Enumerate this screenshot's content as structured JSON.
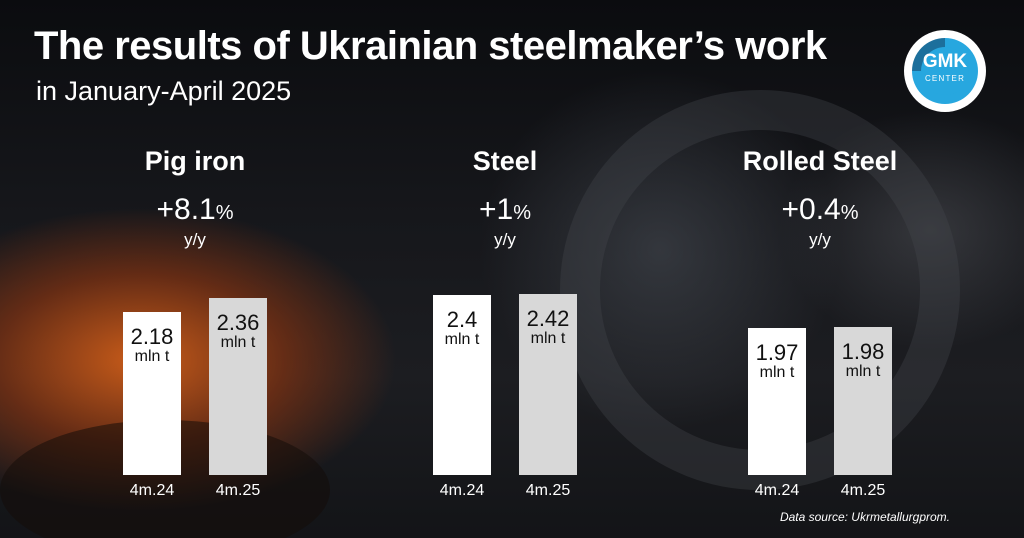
{
  "title": "The results of Ukrainian steelmaker’s work",
  "subtitle": "in January-April 2025",
  "logo": {
    "main": "GMK",
    "sub": "CENTER",
    "color": "#27a7df"
  },
  "source": "Data source: Ukrmetallurgprom.",
  "colors": {
    "bar_previous": "#ffffff",
    "bar_current": "#d8d8d8",
    "text": "#ffffff"
  },
  "chart_data": [
    {
      "type": "bar",
      "title": "Pig iron",
      "change": "+8.1",
      "change_unit": "%",
      "change_basis": "y/y",
      "categories": [
        "4m.24",
        "4m.25"
      ],
      "values": [
        2.18,
        2.36
      ],
      "value_labels": [
        "2.18",
        "2.36"
      ],
      "unit": "mln t",
      "ylim": [
        0,
        2.8
      ]
    },
    {
      "type": "bar",
      "title": "Steel",
      "change": "+1",
      "change_unit": "%",
      "change_basis": "y/y",
      "categories": [
        "4m.24",
        "4m.25"
      ],
      "values": [
        2.4,
        2.42
      ],
      "value_labels": [
        "2.4",
        "2.42"
      ],
      "unit": "mln t",
      "ylim": [
        0,
        2.8
      ]
    },
    {
      "type": "bar",
      "title": "Rolled Steel",
      "change": "+0.4",
      "change_unit": "%",
      "change_basis": "y/y",
      "categories": [
        "4m.24",
        "4m.25"
      ],
      "values": [
        1.97,
        1.98
      ],
      "value_labels": [
        "1.97",
        "1.98"
      ],
      "unit": "mln t",
      "ylim": [
        0,
        2.8
      ]
    }
  ]
}
